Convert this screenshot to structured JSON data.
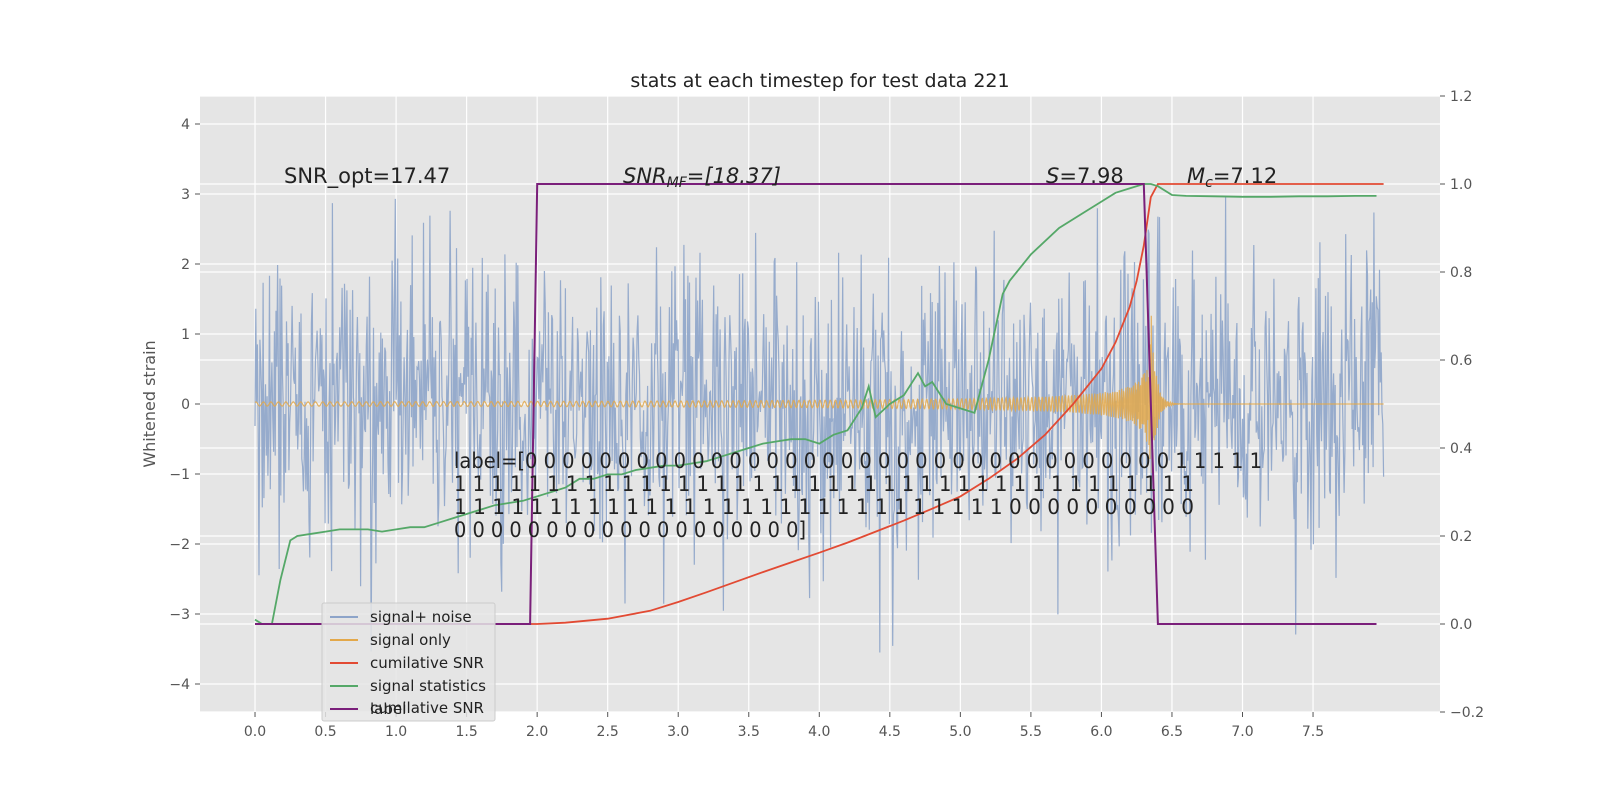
{
  "chart_data": {
    "type": "line",
    "title": "stats at each timestep for test data 221",
    "ylabel": "Whitened strain",
    "ylabel_right": "",
    "xlim": [
      -0.39,
      8.4
    ],
    "ylim": [
      -4.4,
      4.4
    ],
    "ylim_right": [
      -0.2,
      1.2
    ],
    "x_ticks": [
      "0.0",
      "0.5",
      "1.0",
      "1.5",
      "2.0",
      "2.5",
      "3.0",
      "3.5",
      "4.0",
      "4.5",
      "5.0",
      "5.5",
      "6.0",
      "6.5",
      "7.0",
      "7.5"
    ],
    "y_ticks": [
      "−4",
      "−3",
      "−2",
      "−1",
      "0",
      "1",
      "2",
      "3",
      "4"
    ],
    "y_ticks_right": [
      "−0.2",
      "0.0",
      "0.2",
      "0.4",
      "0.6",
      "0.8",
      "1.0",
      "1.2"
    ],
    "grid": true,
    "legend_position": "lower-left",
    "annotations": {
      "snr_opt": "SNR_opt=17.47",
      "snr_mf": "SNR_MF=[18.37]",
      "snr_mf_main": "SNR",
      "snr_mf_sub": "MF",
      "snr_mf_rest": "=[18.37]",
      "s_stat": "S=7.98",
      "s_stat_sym": "S",
      "s_stat_rest": "=7.98",
      "mc": "Mc=7.12",
      "mc_sym": "M",
      "mc_sub": "c",
      "mc_rest": "=7.12",
      "label_line1": "label=[0 0 0 0 0 0 0 0 0 0 0 0 0 0 0 0 0 0 0 0 0 0 0 0 0 0 0 0 0 0 0 0 0 0 0 1 1 1 1 1",
      "label_line2": " 1 1 1 1 1 1 1 1 1 1 1 1 1 1 1 1 1 1 1 1 1 1 1 1 1 1 1 1 1 1 1 1 1 1 1 1 1 1 1 1",
      "label_line3": " 1 1 1 1 1 1 1 1 1 1 1 1 1 1 1 1 1 1 1 1 1 1 1 1 1 1 1 1 1 0 0 0 0 0 0 0 0 0 0",
      "label_line4": " 0 0 0 0 0 0 0 0 0 0 0 0 0 0 0 0 0 0 0]"
    },
    "series": [
      {
        "name": "signal+ noise",
        "axis": "left",
        "color": "#8da4c9",
        "x_range": [
          0,
          8.0
        ],
        "amplitude_typical": 1.8,
        "amplitude_peak": 3.9
      },
      {
        "name": "signal only",
        "axis": "left",
        "color": "#e3a84a",
        "x_range": [
          0,
          8.0
        ],
        "chirp_peak_time": 6.35,
        "chirp_peak_amplitude": 1.4
      },
      {
        "name": "cumilative SNR",
        "axis": "right",
        "color": "#e24a33",
        "x": [
          0.0,
          2.0,
          2.2,
          2.5,
          2.8,
          3.0,
          3.2,
          3.4,
          3.6,
          3.8,
          4.0,
          4.2,
          4.4,
          4.6,
          4.8,
          5.0,
          5.2,
          5.4,
          5.6,
          5.8,
          6.0,
          6.1,
          6.2,
          6.25,
          6.3,
          6.35,
          6.4,
          8.0
        ],
        "y": [
          0.0,
          0.0,
          0.003,
          0.012,
          0.03,
          0.05,
          0.072,
          0.095,
          0.118,
          0.14,
          0.162,
          0.185,
          0.21,
          0.235,
          0.262,
          0.29,
          0.33,
          0.375,
          0.43,
          0.5,
          0.58,
          0.64,
          0.72,
          0.78,
          0.86,
          0.97,
          1.0,
          1.0
        ]
      },
      {
        "name": "signal statistics",
        "axis": "right",
        "color": "#55a868",
        "x": [
          0.0,
          0.05,
          0.12,
          0.18,
          0.25,
          0.3,
          0.4,
          0.5,
          0.6,
          0.7,
          0.8,
          0.9,
          1.0,
          1.1,
          1.2,
          1.3,
          1.4,
          1.5,
          1.6,
          1.7,
          1.8,
          1.9,
          2.0,
          2.05,
          2.1,
          2.2,
          2.3,
          2.4,
          2.5,
          2.6,
          2.7,
          2.8,
          2.9,
          3.0,
          3.1,
          3.2,
          3.3,
          3.4,
          3.5,
          3.6,
          3.7,
          3.8,
          3.9,
          4.0,
          4.1,
          4.2,
          4.3,
          4.35,
          4.4,
          4.5,
          4.6,
          4.7,
          4.75,
          4.8,
          4.9,
          5.0,
          5.1,
          5.2,
          5.3,
          5.35,
          5.5,
          5.7,
          5.9,
          6.0,
          6.1,
          6.2,
          6.3,
          6.35,
          6.4,
          6.5,
          6.6,
          6.8,
          7.0,
          7.2,
          7.4,
          7.6,
          7.8,
          7.95
        ],
        "y": [
          0.01,
          0.0,
          0.0,
          0.1,
          0.19,
          0.2,
          0.205,
          0.21,
          0.215,
          0.215,
          0.215,
          0.21,
          0.215,
          0.22,
          0.22,
          0.23,
          0.24,
          0.25,
          0.26,
          0.27,
          0.275,
          0.28,
          0.29,
          0.295,
          0.3,
          0.31,
          0.33,
          0.33,
          0.34,
          0.34,
          0.35,
          0.355,
          0.36,
          0.36,
          0.365,
          0.37,
          0.38,
          0.39,
          0.4,
          0.41,
          0.415,
          0.42,
          0.42,
          0.41,
          0.43,
          0.44,
          0.49,
          0.54,
          0.47,
          0.5,
          0.52,
          0.57,
          0.54,
          0.55,
          0.5,
          0.49,
          0.48,
          0.6,
          0.75,
          0.78,
          0.84,
          0.9,
          0.94,
          0.96,
          0.98,
          0.99,
          1.0,
          1.0,
          0.995,
          0.975,
          0.973,
          0.972,
          0.971,
          0.971,
          0.972,
          0.972,
          0.973,
          0.973
        ]
      },
      {
        "name": "label",
        "axis": "right",
        "color": "#7a1f7a",
        "x": [
          0.0,
          1.95,
          2.0,
          6.3,
          6.4,
          7.95
        ],
        "y": [
          0.0,
          0.0,
          1.0,
          1.0,
          0.0,
          0.0
        ]
      }
    ],
    "legend_overlay_text": "cumilative SNR"
  }
}
